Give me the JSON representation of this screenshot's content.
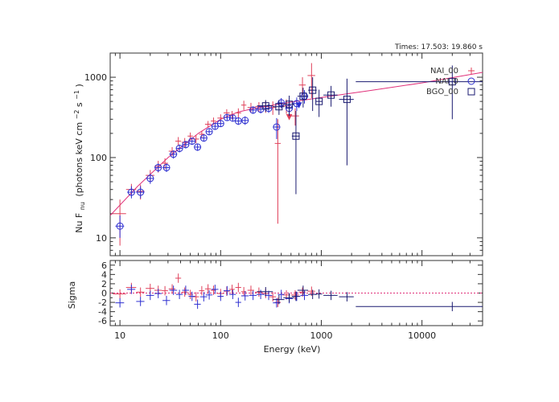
{
  "header": {
    "times_label": "Times: 17.503: 19.860 s"
  },
  "colors": {
    "nai_00": "#e0405a",
    "nai_0b": "#2d2fd0",
    "bgo_00": "#1a1a70",
    "model": "#e0307a",
    "axis": "#333333"
  },
  "chart_data": [
    {
      "type": "scatter",
      "title": "",
      "xlabel": "Energy (keV)",
      "ylabel": "Nu F",
      "ylabel_sub": "nu",
      "ylabel_units": "(photons keV cm",
      "ylabel_exp1": "−2",
      "ylabel_mid": " s",
      "ylabel_exp2": "−1",
      "ylabel_end": ")",
      "x_scale": "log",
      "y_scale": "log",
      "xlim": [
        8,
        40000
      ],
      "ylim": [
        6,
        2000
      ],
      "yticks": [
        10,
        100,
        1000
      ],
      "ytick_labels": [
        "10",
        "100",
        "1000"
      ],
      "legend": {
        "position": "top-right",
        "entries": [
          {
            "label": "NAI_00",
            "marker": "plus",
            "color": "#e0405a"
          },
          {
            "label": "NAI_0",
            "marker": "circle",
            "color": "#2d2fd0"
          },
          {
            "label": "BGO_00",
            "marker": "square",
            "color": "#1a1a70"
          }
        ]
      },
      "model": {
        "name": "model",
        "x": [
          8,
          15,
          30,
          60,
          100,
          150,
          200,
          300,
          500,
          1000,
          3000,
          10000,
          40000
        ],
        "y": [
          19,
          44,
          100,
          200,
          300,
          370,
          400,
          440,
          490,
          560,
          680,
          850,
          1150
        ]
      },
      "series": [
        {
          "name": "NAI_00",
          "marker": "plus",
          "x": [
            10,
            13,
            16,
            20,
            24,
            28,
            33,
            38,
            44,
            50,
            57,
            65,
            75,
            85,
            100,
            115,
            130,
            150,
            170,
            200,
            240,
            280,
            330,
            370,
            450,
            550,
            650,
            800
          ],
          "y": [
            20,
            40,
            38,
            60,
            78,
            85,
            120,
            160,
            155,
            185,
            170,
            195,
            260,
            285,
            310,
            360,
            340,
            360,
            450,
            420,
            430,
            430,
            420,
            150,
            440,
            330,
            800,
            1050
          ],
          "ylo": [
            8,
            33,
            30,
            50,
            65,
            72,
            105,
            140,
            135,
            165,
            150,
            175,
            235,
            255,
            275,
            320,
            300,
            310,
            390,
            360,
            370,
            360,
            340,
            15,
            350,
            250,
            600,
            550
          ],
          "yhi": [
            30,
            47,
            46,
            70,
            91,
            98,
            135,
            180,
            175,
            205,
            190,
            215,
            285,
            315,
            345,
            400,
            380,
            410,
            510,
            480,
            490,
            500,
            500,
            300,
            530,
            410,
            1000,
            1500
          ],
          "xlo": [
            8.5,
            11.5,
            14.5,
            18,
            22,
            26,
            30.5,
            35.5,
            41,
            47,
            53,
            61,
            70,
            80,
            93,
            107,
            122,
            140,
            160,
            185,
            220,
            260,
            305,
            345,
            410,
            500,
            600,
            730
          ],
          "xhi": [
            11.5,
            14.5,
            17.5,
            22,
            26,
            30,
            35.5,
            40.5,
            47,
            53,
            61,
            69,
            80,
            90,
            107,
            123,
            138,
            160,
            180,
            215,
            260,
            300,
            355,
            395,
            490,
            600,
            700,
            870
          ],
          "upper_limit": {
            "x": 480,
            "y": 320
          }
        },
        {
          "name": "NAI_0",
          "marker": "circle",
          "x": [
            10,
            13,
            16,
            20,
            24,
            29,
            34,
            39,
            45,
            52,
            59,
            68,
            77,
            88,
            100,
            116,
            132,
            150,
            175,
            210,
            250,
            300,
            360,
            400,
            480,
            570,
            680
          ],
          "y": [
            14,
            37,
            37,
            55,
            75,
            75,
            110,
            130,
            145,
            160,
            135,
            175,
            210,
            245,
            265,
            315,
            310,
            285,
            290,
            390,
            400,
            410,
            240,
            480,
            410,
            470,
            580
          ],
          "ylo": [
            10,
            31,
            31,
            47,
            66,
            66,
            97,
            116,
            130,
            145,
            121,
            158,
            190,
            222,
            240,
            286,
            280,
            255,
            255,
            350,
            355,
            360,
            170,
            410,
            340,
            380,
            470
          ],
          "yhi": [
            19,
            44,
            44,
            63,
            84,
            84,
            123,
            145,
            160,
            175,
            149,
            192,
            230,
            268,
            290,
            344,
            340,
            315,
            325,
            430,
            445,
            460,
            310,
            550,
            480,
            560,
            690
          ],
          "xlo": [
            9,
            11.8,
            14.5,
            18.2,
            22,
            26.5,
            31,
            36,
            41.5,
            48,
            54.5,
            62.5,
            71,
            81,
            93,
            107,
            122,
            140,
            160,
            192,
            228,
            275,
            330,
            370,
            440,
            520,
            620
          ],
          "xhi": [
            11,
            14.2,
            17.5,
            21.8,
            26,
            31.5,
            37,
            42,
            48.5,
            56,
            63.5,
            73.5,
            83,
            95,
            107,
            125,
            142,
            160,
            190,
            228,
            272,
            325,
            390,
            430,
            520,
            620,
            740
          ],
          "upper_limit": {
            "x": 600,
            "y": 450
          }
        },
        {
          "name": "BGO_00",
          "marker": "square",
          "x": [
            280,
            380,
            480,
            560,
            660,
            820,
            950,
            1250,
            1800,
            20000
          ],
          "y": [
            440,
            430,
            460,
            185,
            580,
            690,
            500,
            600,
            530,
            880
          ],
          "ylo": [
            370,
            340,
            330,
            35,
            420,
            380,
            320,
            430,
            80,
            300
          ],
          "yhi": [
            520,
            520,
            590,
            380,
            740,
            1000,
            700,
            780,
            960,
            1400
          ],
          "xlo": [
            230,
            330,
            420,
            510,
            580,
            740,
            880,
            1050,
            1500,
            2200
          ],
          "xhi": [
            330,
            430,
            540,
            610,
            740,
            900,
            1020,
            1450,
            2100,
            40000
          ]
        }
      ]
    },
    {
      "type": "scatter",
      "xlabel": "Energy (keV)",
      "ylabel": "Sigma",
      "x_scale": "log",
      "ylim": [
        -7,
        7
      ],
      "xticks": [
        10,
        100,
        1000,
        10000
      ],
      "xtick_labels": [
        "10",
        "100",
        "1000",
        "10000"
      ],
      "yticks": [
        -6,
        -4,
        -2,
        0,
        2,
        4,
        6
      ],
      "ytick_labels": [
        "-6",
        "-4",
        "-2",
        "0",
        "2",
        "4",
        "6"
      ],
      "series": [
        {
          "name": "NAI_00",
          "marker": "plus",
          "x": [
            10,
            13,
            16,
            20,
            24,
            28,
            33,
            38,
            44,
            50,
            57,
            65,
            75,
            85,
            100,
            115,
            130,
            150,
            170,
            200,
            240,
            280,
            330,
            370,
            450,
            550,
            650,
            800
          ],
          "y": [
            -0.2,
            1.2,
            0.2,
            1.0,
            0.6,
            0.5,
            0.9,
            3.2,
            0.2,
            -0.3,
            -0.8,
            0.5,
            0.9,
            0.6,
            -0.1,
            0.4,
            0.8,
            1.2,
            0.3,
            0.6,
            0.2,
            -0.1,
            -0.8,
            -2.0,
            -0.4,
            -0.4,
            0.2,
            0.4
          ]
        },
        {
          "name": "NAI_0",
          "marker": "circle",
          "x": [
            10,
            13,
            16,
            20,
            24,
            29,
            34,
            39,
            45,
            52,
            59,
            68,
            77,
            88,
            100,
            116,
            132,
            150,
            175,
            210,
            250,
            300,
            360,
            400,
            480,
            570,
            680
          ],
          "y": [
            -2.1,
            0.8,
            -1.8,
            -0.5,
            -0.1,
            -1.6,
            0.6,
            -0.3,
            0.6,
            -0.7,
            -2.4,
            -0.8,
            -0.4,
            0.8,
            -0.7,
            0.5,
            -0.3,
            -2.0,
            -0.6,
            -0.5,
            -0.3,
            -0.5,
            -2.1,
            -0.3,
            -1.2,
            -0.7,
            -0.5
          ]
        },
        {
          "name": "BGO_00",
          "marker": "square",
          "x": [
            280,
            380,
            480,
            560,
            660,
            820,
            950,
            1250,
            1800,
            20000
          ],
          "y": [
            0.3,
            -1.4,
            -1.0,
            -0.7,
            0.6,
            -0.3,
            -0.2,
            -0.5,
            -0.8,
            -2.9
          ]
        }
      ]
    }
  ]
}
